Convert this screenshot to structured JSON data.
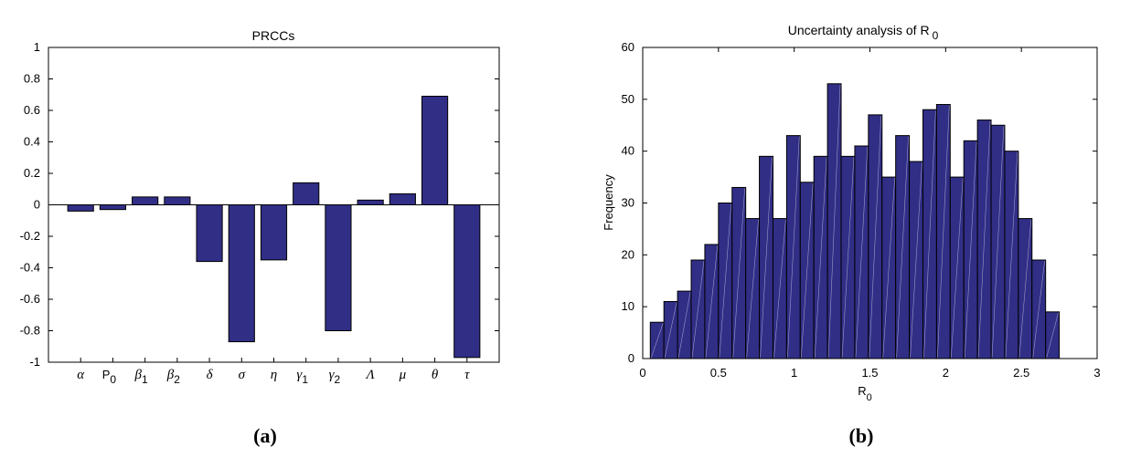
{
  "colors": {
    "bar": "#312e86",
    "axis": "#000000",
    "background": "#ffffff"
  },
  "captions": {
    "a": "(a)",
    "b": "(b)"
  },
  "chart_data": [
    {
      "type": "bar",
      "title": "PRCCs",
      "xlabel": "",
      "ylabel": "",
      "ylim": [
        -1,
        1
      ],
      "yticks": [
        "1",
        "0.8",
        "0.6",
        "0.4",
        "0.2",
        "0",
        "-0.2",
        "-0.4",
        "-0.6",
        "-0.8",
        "-1"
      ],
      "categories": [
        {
          "main": "α",
          "sub": "",
          "style": "greek"
        },
        {
          "main": "P",
          "sub": "0",
          "style": "roman"
        },
        {
          "main": "β",
          "sub": "1",
          "style": "greek"
        },
        {
          "main": "β",
          "sub": "2",
          "style": "greek"
        },
        {
          "main": "δ",
          "sub": "",
          "style": "greek"
        },
        {
          "main": "σ",
          "sub": "",
          "style": "greek"
        },
        {
          "main": "η",
          "sub": "",
          "style": "greek"
        },
        {
          "main": "γ",
          "sub": "1",
          "style": "greek"
        },
        {
          "main": "γ",
          "sub": "2",
          "style": "greek"
        },
        {
          "main": "Λ",
          "sub": "",
          "style": "upright-greek"
        },
        {
          "main": "μ",
          "sub": "",
          "style": "greek"
        },
        {
          "main": "θ",
          "sub": "",
          "style": "greek"
        },
        {
          "main": "τ",
          "sub": "",
          "style": "greek"
        }
      ],
      "values": [
        -0.04,
        -0.03,
        0.05,
        0.05,
        -0.36,
        -0.87,
        -0.35,
        0.14,
        -0.8,
        0.03,
        0.07,
        0.69,
        -0.97
      ],
      "grid": false
    },
    {
      "type": "bar",
      "subtype": "histogram",
      "title": "Uncertainty analysis of R",
      "title_sub": "0",
      "xlabel": "R",
      "xlabel_sub": "0",
      "ylabel": "Frequency",
      "xlim": [
        0,
        3
      ],
      "ylim": [
        0,
        60
      ],
      "xticks": [
        "0",
        "0.5",
        "1",
        "1.5",
        "2",
        "2.5",
        "3"
      ],
      "yticks": [
        "0",
        "10",
        "20",
        "30",
        "40",
        "50",
        "60"
      ],
      "bin_range": [
        0.05,
        2.75
      ],
      "values": [
        7,
        11,
        13,
        19,
        22,
        30,
        33,
        27,
        39,
        27,
        43,
        34,
        39,
        53,
        39,
        41,
        47,
        35,
        43,
        38,
        48,
        49,
        35,
        42,
        46,
        45,
        40,
        27,
        19,
        9
      ],
      "grid": false
    }
  ]
}
